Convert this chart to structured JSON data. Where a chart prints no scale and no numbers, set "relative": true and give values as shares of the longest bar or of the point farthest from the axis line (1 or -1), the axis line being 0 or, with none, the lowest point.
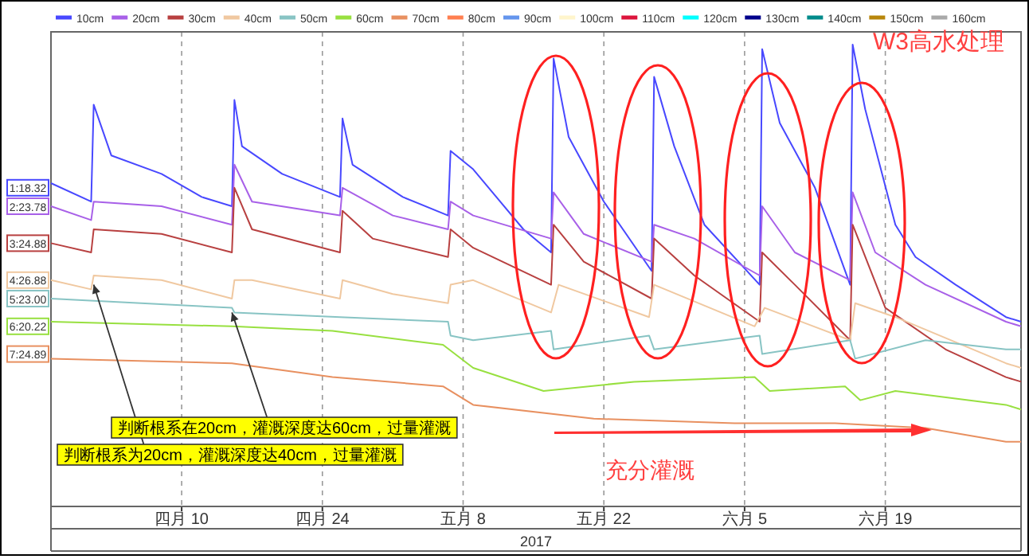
{
  "chart_data": {
    "type": "line",
    "relative": true,
    "grid": "x",
    "legend": "top",
    "xlabel": "2017",
    "xlim": [
      "2017-03-28",
      "2017-07-02T12:00"
    ],
    "xticks": [
      {
        "value": "2017-04-10",
        "label": "四月 10"
      },
      {
        "value": "2017-04-24",
        "label": "四月 24"
      },
      {
        "value": "2017-05-08",
        "label": "五月 8"
      },
      {
        "value": "2017-05-22",
        "label": "五月 22"
      },
      {
        "value": "2017-06-05",
        "label": "六月 5"
      },
      {
        "value": "2017-06-19",
        "label": "六月 19"
      }
    ],
    "series": [
      {
        "name": "10cm",
        "color": "#4848ff",
        "x": [
          "2017-03-28",
          "2017-04-01",
          "2017-04-01T06:00",
          "2017-04-03",
          "2017-04-08",
          "2017-04-12",
          "2017-04-15",
          "2017-04-15T06:00",
          "2017-04-16",
          "2017-04-20",
          "2017-04-25T18:00",
          "2017-04-26",
          "2017-04-27",
          "2017-05-02",
          "2017-05-06T12:00",
          "2017-05-06T18:00",
          "2017-05-09",
          "2017-05-14",
          "2017-05-16T18:00",
          "2017-05-17",
          "2017-05-18T12:00",
          "2017-05-22",
          "2017-05-26T18:00",
          "2017-05-27",
          "2017-05-29",
          "2017-06-01",
          "2017-06-06T12:00",
          "2017-06-06T18:00",
          "2017-06-08T12:00",
          "2017-06-12",
          "2017-06-15T12:00",
          "2017-06-15T18:00",
          "2017-06-17",
          "2017-06-20",
          "2017-06-22",
          "2017-06-26",
          "2017-07-01",
          "2017-07-02T12:00"
        ],
        "values": [
          0.7,
          0.66,
          0.87,
          0.76,
          0.72,
          0.67,
          0.65,
          0.88,
          0.78,
          0.72,
          0.67,
          0.84,
          0.74,
          0.67,
          0.63,
          0.77,
          0.73,
          0.6,
          0.55,
          0.97,
          0.8,
          0.66,
          0.51,
          0.93,
          0.78,
          0.61,
          0.48,
          0.99,
          0.83,
          0.69,
          0.48,
          1.0,
          0.86,
          0.61,
          0.54,
          0.48,
          0.41,
          0.4
        ]
      },
      {
        "name": "20cm",
        "color": "#a860e8",
        "x": [
          "2017-03-28",
          "2017-04-01",
          "2017-04-01T06:00",
          "2017-04-08",
          "2017-04-15",
          "2017-04-15T06:00",
          "2017-04-17",
          "2017-04-25T18:00",
          "2017-04-26",
          "2017-05-01",
          "2017-05-06T12:00",
          "2017-05-06T18:00",
          "2017-05-09",
          "2017-05-16T18:00",
          "2017-05-17",
          "2017-05-20",
          "2017-05-26T18:00",
          "2017-05-27",
          "2017-05-31",
          "2017-06-06T12:00",
          "2017-06-06T18:00",
          "2017-06-10",
          "2017-06-15T12:00",
          "2017-06-15T18:00",
          "2017-06-18",
          "2017-06-23",
          "2017-07-01",
          "2017-07-02T12:00"
        ],
        "values": [
          0.65,
          0.62,
          0.66,
          0.65,
          0.61,
          0.74,
          0.66,
          0.63,
          0.69,
          0.63,
          0.6,
          0.66,
          0.63,
          0.58,
          0.68,
          0.59,
          0.53,
          0.61,
          0.58,
          0.5,
          0.65,
          0.55,
          0.49,
          0.68,
          0.55,
          0.48,
          0.4,
          0.39
        ]
      },
      {
        "name": "30cm",
        "color": "#b84040",
        "x": [
          "2017-03-28",
          "2017-04-01",
          "2017-04-01T06:00",
          "2017-04-08",
          "2017-04-15",
          "2017-04-15T06:00",
          "2017-04-17",
          "2017-04-25T18:00",
          "2017-04-26",
          "2017-04-29",
          "2017-05-06T12:00",
          "2017-05-06T18:00",
          "2017-05-09",
          "2017-05-16T18:00",
          "2017-05-17",
          "2017-05-20",
          "2017-05-26T18:00",
          "2017-05-27",
          "2017-05-31",
          "2017-06-06T12:00",
          "2017-06-06T18:00",
          "2017-06-10",
          "2017-06-15T12:00",
          "2017-06-15T18:00",
          "2017-06-19",
          "2017-06-25",
          "2017-07-01",
          "2017-07-02T12:00"
        ],
        "values": [
          0.57,
          0.55,
          0.6,
          0.59,
          0.55,
          0.69,
          0.6,
          0.55,
          0.64,
          0.58,
          0.54,
          0.6,
          0.56,
          0.48,
          0.61,
          0.53,
          0.45,
          0.58,
          0.5,
          0.4,
          0.55,
          0.48,
          0.36,
          0.61,
          0.43,
          0.34,
          0.28,
          0.27
        ]
      },
      {
        "name": "40cm",
        "color": "#f0c8a0",
        "x": [
          "2017-03-28",
          "2017-04-01",
          "2017-04-01T06:00",
          "2017-04-08",
          "2017-04-15",
          "2017-04-15T06:00",
          "2017-04-17",
          "2017-04-25T18:00",
          "2017-04-26",
          "2017-05-01",
          "2017-05-06T12:00",
          "2017-05-06T18:00",
          "2017-05-09",
          "2017-05-16T18:00",
          "2017-05-17T12:00",
          "2017-05-26T12:00",
          "2017-05-27",
          "2017-06-06",
          "2017-06-07",
          "2017-06-15T12:00",
          "2017-06-16",
          "2017-06-20",
          "2017-07-01",
          "2017-07-02T12:00"
        ],
        "values": [
          0.49,
          0.47,
          0.5,
          0.49,
          0.45,
          0.49,
          0.49,
          0.45,
          0.49,
          0.46,
          0.44,
          0.48,
          0.49,
          0.42,
          0.48,
          0.41,
          0.48,
          0.39,
          0.43,
          0.36,
          0.44,
          0.41,
          0.31,
          0.3
        ]
      },
      {
        "name": "50cm",
        "color": "#88c4c4",
        "x": [
          "2017-03-28",
          "2017-04-15",
          "2017-04-15T06:00",
          "2017-04-25T18:00",
          "2017-05-06T12:00",
          "2017-05-06T18:00",
          "2017-05-09",
          "2017-05-16T18:00",
          "2017-05-17",
          "2017-05-26T12:00",
          "2017-05-27",
          "2017-06-06T12:00",
          "2017-06-06T18:00",
          "2017-06-15T12:00",
          "2017-06-16",
          "2017-06-23",
          "2017-07-01",
          "2017-07-02T12:00"
        ],
        "values": [
          0.45,
          0.43,
          0.42,
          0.41,
          0.4,
          0.37,
          0.36,
          0.38,
          0.34,
          0.37,
          0.34,
          0.37,
          0.33,
          0.36,
          0.32,
          0.36,
          0.34,
          0.34
        ]
      },
      {
        "name": "60cm",
        "color": "#98e040",
        "x": [
          "2017-03-28",
          "2017-04-15",
          "2017-04-25",
          "2017-05-06",
          "2017-05-09",
          "2017-05-16",
          "2017-05-25",
          "2017-06-06",
          "2017-06-07T12:00",
          "2017-06-15",
          "2017-06-16T12:00",
          "2017-06-20",
          "2017-07-01",
          "2017-07-02T12:00"
        ],
        "values": [
          0.4,
          0.39,
          0.38,
          0.35,
          0.3,
          0.25,
          0.27,
          0.28,
          0.25,
          0.26,
          0.23,
          0.25,
          0.22,
          0.21
        ]
      },
      {
        "name": "70cm",
        "color": "#e89060",
        "x": [
          "2017-03-28",
          "2017-04-15",
          "2017-04-25",
          "2017-05-06",
          "2017-05-09",
          "2017-05-21",
          "2017-06-04",
          "2017-06-14",
          "2017-06-23",
          "2017-07-01",
          "2017-07-02T12:00"
        ],
        "values": [
          0.32,
          0.31,
          0.28,
          0.26,
          0.22,
          0.19,
          0.18,
          0.18,
          0.17,
          0.14,
          0.14
        ]
      },
      {
        "name": "80cm",
        "color": "#ff7f50"
      },
      {
        "name": "90cm",
        "color": "#6495ed"
      },
      {
        "name": "100cm",
        "color": "#fff5cc"
      },
      {
        "name": "110cm",
        "color": "#dc143c"
      },
      {
        "name": "120cm",
        "color": "#00ffff"
      },
      {
        "name": "130cm",
        "color": "#00008b"
      },
      {
        "name": "140cm",
        "color": "#008b8b"
      },
      {
        "name": "150cm",
        "color": "#b8860b"
      },
      {
        "name": "160cm",
        "color": "#a9a9a9"
      }
    ],
    "annotations": [
      {
        "text": "1:18.32",
        "x": "2017-03-28",
        "y": 0.69
      },
      {
        "text": "2:23.78",
        "x": "2017-03-28",
        "y": 0.65
      },
      {
        "text": "3:24.88",
        "x": "2017-03-28",
        "y": 0.57
      },
      {
        "text": "4:26.88",
        "x": "2017-03-28",
        "y": 0.49
      },
      {
        "text": "5:23.00",
        "x": "2017-03-28",
        "y": 0.45
      },
      {
        "text": "6:20.22",
        "x": "2017-03-28",
        "y": 0.39
      },
      {
        "text": "7:24.89",
        "x": "2017-03-28",
        "y": 0.33
      },
      {
        "text": "判断根系在20cm，灌溉深度达60cm，过量灌溉",
        "x": "2017-04-15",
        "y": 0.42
      },
      {
        "text": "判断根系为20cm，灌溉深度达40cm，过量灌溉",
        "x": "2017-04-01T06:00",
        "y": 0.48
      },
      "W3高水处理",
      "充分灌溉"
    ]
  }
}
